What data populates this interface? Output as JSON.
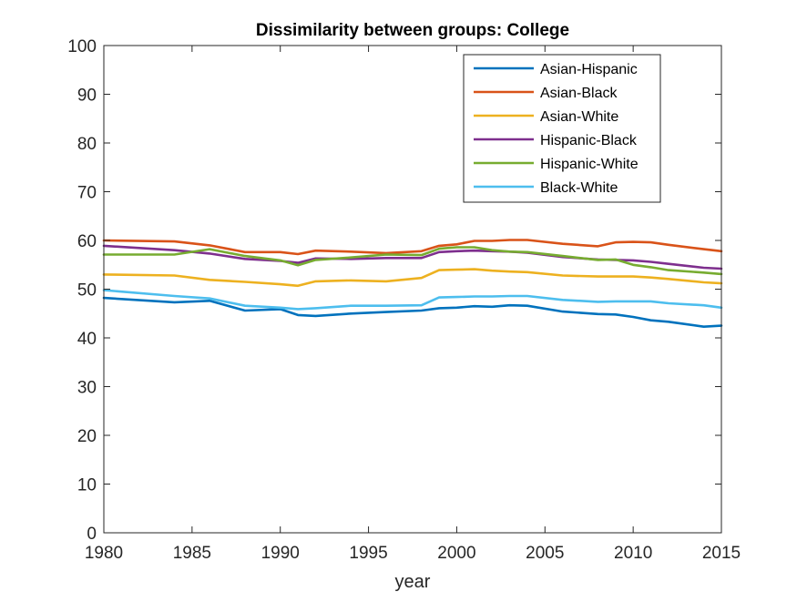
{
  "chart_data": {
    "type": "line",
    "title": "Dissimilarity between groups: College",
    "xlabel": "year",
    "ylabel": "",
    "xlim": [
      1980,
      2015
    ],
    "ylim": [
      0,
      100
    ],
    "xticks": [
      1980,
      1985,
      1990,
      1995,
      2000,
      2005,
      2010,
      2015
    ],
    "yticks": [
      0,
      10,
      20,
      30,
      40,
      50,
      60,
      70,
      80,
      90,
      100
    ],
    "grid": false,
    "legend_position": "top-right",
    "x": [
      1980,
      1984,
      1986,
      1988,
      1990,
      1991,
      1992,
      1994,
      1996,
      1998,
      1999,
      2000,
      2001,
      2002,
      2003,
      2004,
      2006,
      2008,
      2009,
      2010,
      2011,
      2012,
      2014,
      2015
    ],
    "series": [
      {
        "name": "Asian-Hispanic",
        "color": "#0072BD",
        "values": [
          48.2,
          47.3,
          47.6,
          45.6,
          45.9,
          44.7,
          44.5,
          45.0,
          45.3,
          45.6,
          46.1,
          46.2,
          46.5,
          46.4,
          46.7,
          46.6,
          45.4,
          44.9,
          44.8,
          44.3,
          43.6,
          43.3,
          42.3,
          42.5
        ]
      },
      {
        "name": "Asian-Black",
        "color": "#D95319",
        "values": [
          60.0,
          59.8,
          59.0,
          57.6,
          57.6,
          57.2,
          57.9,
          57.7,
          57.4,
          57.8,
          58.9,
          59.2,
          59.9,
          59.9,
          60.1,
          60.1,
          59.3,
          58.8,
          59.6,
          59.7,
          59.6,
          59.1,
          58.2,
          57.8
        ]
      },
      {
        "name": "Asian-White",
        "color": "#EDB120",
        "values": [
          53.0,
          52.8,
          51.9,
          51.5,
          51.0,
          50.7,
          51.6,
          51.8,
          51.6,
          52.3,
          53.9,
          54.0,
          54.1,
          53.8,
          53.6,
          53.5,
          52.8,
          52.6,
          52.6,
          52.6,
          52.4,
          52.1,
          51.4,
          51.2
        ]
      },
      {
        "name": "Hispanic-Black",
        "color": "#7E2F8E",
        "values": [
          58.9,
          58.0,
          57.3,
          56.2,
          55.8,
          55.4,
          56.3,
          56.2,
          56.4,
          56.4,
          57.6,
          57.8,
          57.9,
          57.8,
          57.7,
          57.5,
          56.6,
          56.1,
          56.0,
          55.9,
          55.6,
          55.2,
          54.4,
          54.2
        ]
      },
      {
        "name": "Hispanic-White",
        "color": "#77AC30",
        "values": [
          57.1,
          57.1,
          58.2,
          56.8,
          55.9,
          54.9,
          56.0,
          56.5,
          57.1,
          57.0,
          58.3,
          58.6,
          58.6,
          58.0,
          57.7,
          57.6,
          56.8,
          56.0,
          56.1,
          55.0,
          54.5,
          53.9,
          53.4,
          53.1
        ]
      },
      {
        "name": "Black-White",
        "color": "#4DBEEE",
        "values": [
          49.8,
          48.6,
          48.1,
          46.6,
          46.2,
          45.9,
          46.1,
          46.6,
          46.6,
          46.7,
          48.3,
          48.4,
          48.5,
          48.5,
          48.6,
          48.6,
          47.8,
          47.4,
          47.5,
          47.5,
          47.5,
          47.1,
          46.7,
          46.2
        ]
      }
    ]
  }
}
